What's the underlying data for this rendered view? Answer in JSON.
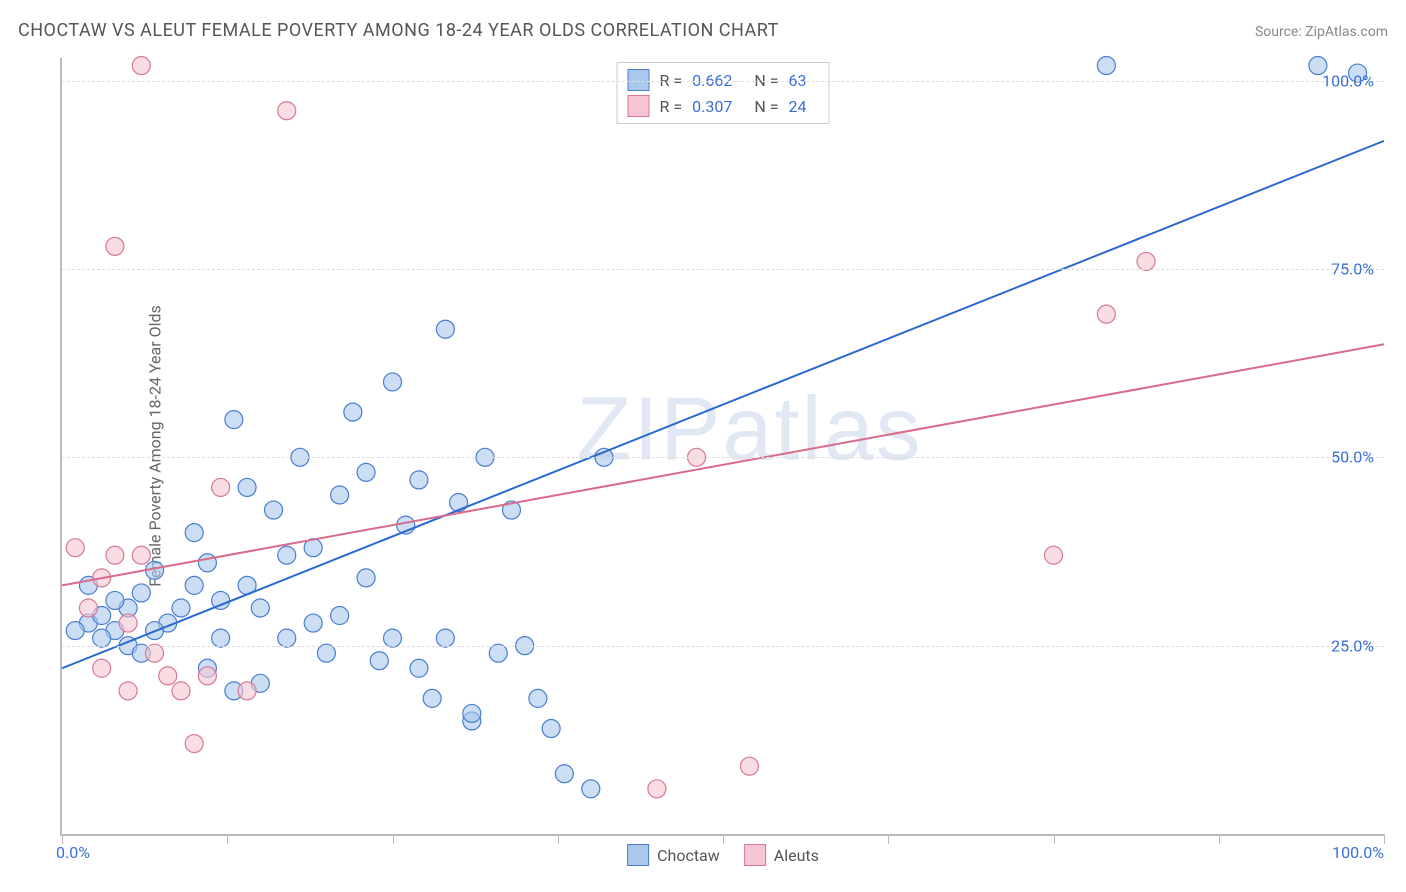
{
  "title": "CHOCTAW VS ALEUT FEMALE POVERTY AMONG 18-24 YEAR OLDS CORRELATION CHART",
  "source_label": "Source: ",
  "source_name": "ZipAtlas.com",
  "ylabel": "Female Poverty Among 18-24 Year Olds",
  "watermark_a": "ZIP",
  "watermark_b": "atlas",
  "xlim": [
    0,
    100
  ],
  "ylim": [
    0,
    103
  ],
  "x_tick_positions": [
    0,
    12.5,
    25,
    37.5,
    50,
    62.5,
    75,
    87.5,
    100
  ],
  "y_gridlines": [
    25,
    50,
    75,
    100
  ],
  "y_tick_labels": [
    "25.0%",
    "50.0%",
    "75.0%",
    "100.0%"
  ],
  "x_min_label": "0.0%",
  "x_max_label": "100.0%",
  "series": [
    {
      "name": "Choctaw",
      "fill": "#a9c8ec",
      "stroke": "#4a7dd0",
      "line_color": "#2a6ad0",
      "R": "0.662",
      "N": "63",
      "line": {
        "x1": 0,
        "y1": 22,
        "x2": 100,
        "y2": 92
      },
      "points": [
        [
          2,
          28
        ],
        [
          3,
          29
        ],
        [
          1,
          27
        ],
        [
          4,
          27
        ],
        [
          5,
          30
        ],
        [
          2,
          33
        ],
        [
          3,
          26
        ],
        [
          6,
          32
        ],
        [
          7,
          35
        ],
        [
          5,
          25
        ],
        [
          4,
          31
        ],
        [
          8,
          28
        ],
        [
          6,
          24
        ],
        [
          9,
          30
        ],
        [
          10,
          33
        ],
        [
          7,
          27
        ],
        [
          11,
          36
        ],
        [
          12,
          31
        ],
        [
          10,
          40
        ],
        [
          13,
          55
        ],
        [
          14,
          46
        ],
        [
          12,
          26
        ],
        [
          15,
          30
        ],
        [
          11,
          22
        ],
        [
          16,
          43
        ],
        [
          17,
          37
        ],
        [
          13,
          19
        ],
        [
          18,
          50
        ],
        [
          14,
          33
        ],
        [
          19,
          28
        ],
        [
          20,
          24
        ],
        [
          15,
          20
        ],
        [
          21,
          45
        ],
        [
          22,
          56
        ],
        [
          17,
          26
        ],
        [
          23,
          48
        ],
        [
          24,
          23
        ],
        [
          19,
          38
        ],
        [
          25,
          60
        ],
        [
          26,
          41
        ],
        [
          21,
          29
        ],
        [
          27,
          22
        ],
        [
          28,
          18
        ],
        [
          23,
          34
        ],
        [
          29,
          67
        ],
        [
          30,
          44
        ],
        [
          25,
          26
        ],
        [
          31,
          15
        ],
        [
          32,
          50
        ],
        [
          27,
          47
        ],
        [
          33,
          24
        ],
        [
          34,
          43
        ],
        [
          29,
          26
        ],
        [
          35,
          25
        ],
        [
          36,
          18
        ],
        [
          31,
          16
        ],
        [
          37,
          14
        ],
        [
          38,
          8
        ],
        [
          41,
          50
        ],
        [
          40,
          6
        ],
        [
          79,
          102
        ],
        [
          98,
          101
        ],
        [
          95,
          102
        ]
      ]
    },
    {
      "name": "Aleuts",
      "fill": "#f5c6d1",
      "stroke": "#d67a94",
      "line_color": "#d86a8a",
      "R": "0.307",
      "N": "24",
      "line": {
        "x1": 0,
        "y1": 33,
        "x2": 100,
        "y2": 65
      },
      "points": [
        [
          6,
          102
        ],
        [
          17,
          96
        ],
        [
          4,
          78
        ],
        [
          12,
          46
        ],
        [
          3,
          22
        ],
        [
          5,
          19
        ],
        [
          4,
          37
        ],
        [
          2,
          30
        ],
        [
          7,
          24
        ],
        [
          9,
          19
        ],
        [
          10,
          12
        ],
        [
          45,
          6
        ],
        [
          52,
          9
        ],
        [
          48,
          50
        ],
        [
          75,
          37
        ],
        [
          79,
          69
        ],
        [
          82,
          76
        ],
        [
          1,
          38
        ],
        [
          3,
          34
        ],
        [
          6,
          37
        ],
        [
          8,
          21
        ],
        [
          14,
          19
        ],
        [
          11,
          21
        ],
        [
          5,
          28
        ]
      ]
    }
  ],
  "marker_radius": 9,
  "marker_opacity": 0.6,
  "line_width": 2
}
